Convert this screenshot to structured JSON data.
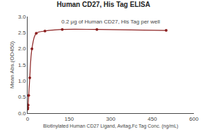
{
  "chart_data": {
    "type": "line",
    "title": "Human CD27, His Tag ELISA",
    "subtitle": "0.2 μg of Human CD27, His Tag per well",
    "xlabel": "BiotInylated Human CD27 Ligand, Avitag,Fc Tag Conc. (ng/mL)",
    "ylabel": "Mean Abs.(OD450)",
    "x": [
      0.49,
      0.98,
      1.95,
      3.91,
      7.81,
      15.63,
      31.25,
      62.5,
      125,
      250,
      500
    ],
    "values": [
      0.13,
      0.17,
      0.25,
      0.55,
      1.1,
      2.0,
      2.48,
      2.55,
      2.6,
      2.6,
      2.57
    ],
    "color": "#8B2020",
    "marker": "circle",
    "xlim": [
      0,
      600
    ],
    "xticks": [
      0,
      150,
      300,
      450,
      600
    ],
    "ylim": [
      0.0,
      3.0
    ],
    "yticks": [
      {
        "value": 0.0,
        "label": "0.0"
      },
      0.5,
      {
        "value": 1.0,
        "label": "1.0"
      },
      1.5,
      {
        "value": 2.0,
        "label": "2.0"
      },
      2.5,
      {
        "value": 3.0,
        "label": "3.0"
      }
    ],
    "grid": false
  }
}
